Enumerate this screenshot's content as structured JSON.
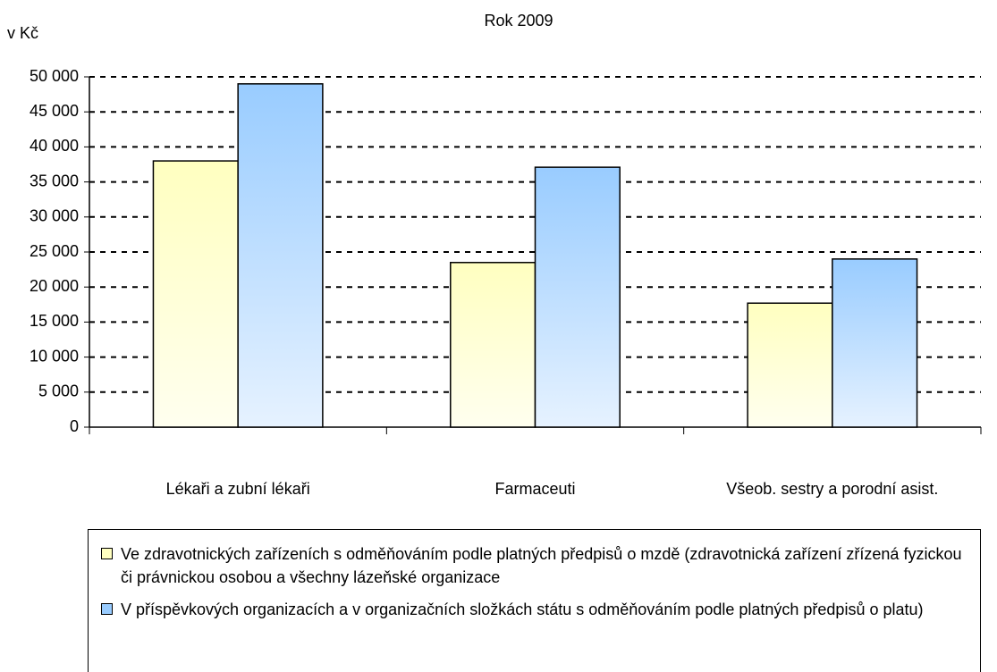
{
  "chart_data": {
    "type": "bar",
    "title": "Rok 2009",
    "y_label": "v Kč",
    "categories": [
      "Lékaři a zubní lékaři",
      "Farmaceuti",
      "Všeob. sestry a porodní asist."
    ],
    "series": [
      {
        "name": "Ve zdravotnických zařízeních s odměňováním podle platných předpisů o mzdě (zdravotnická zařízení zřízená fyzickou či právnickou osobou a všechny lázeňské organizace",
        "color": "#ffffc0",
        "values": [
          38000,
          23500,
          17700
        ]
      },
      {
        "name": "V příspěvkových organizacích a v organizačních složkách státu s odměňováním podle platných předpisů o platu)",
        "color": "#99ccff",
        "values": [
          49000,
          37100,
          24000
        ]
      }
    ],
    "ylim": [
      0,
      50000
    ],
    "yticks": [
      0,
      {
        "value": 5000,
        "label": "5 000"
      },
      {
        "value": 10000,
        "label": "10 000"
      },
      {
        "value": 15000,
        "label": "15 000"
      },
      {
        "value": 20000,
        "label": "20 000"
      },
      {
        "value": 25000,
        "label": "25 000"
      },
      {
        "value": 30000,
        "label": "30 000"
      },
      {
        "value": 35000,
        "label": "35 000"
      },
      {
        "value": 40000,
        "label": "40 000"
      },
      {
        "value": 45000,
        "label": "45 000"
      },
      {
        "value": 50000,
        "label": "50 000"
      }
    ],
    "grid": true
  }
}
